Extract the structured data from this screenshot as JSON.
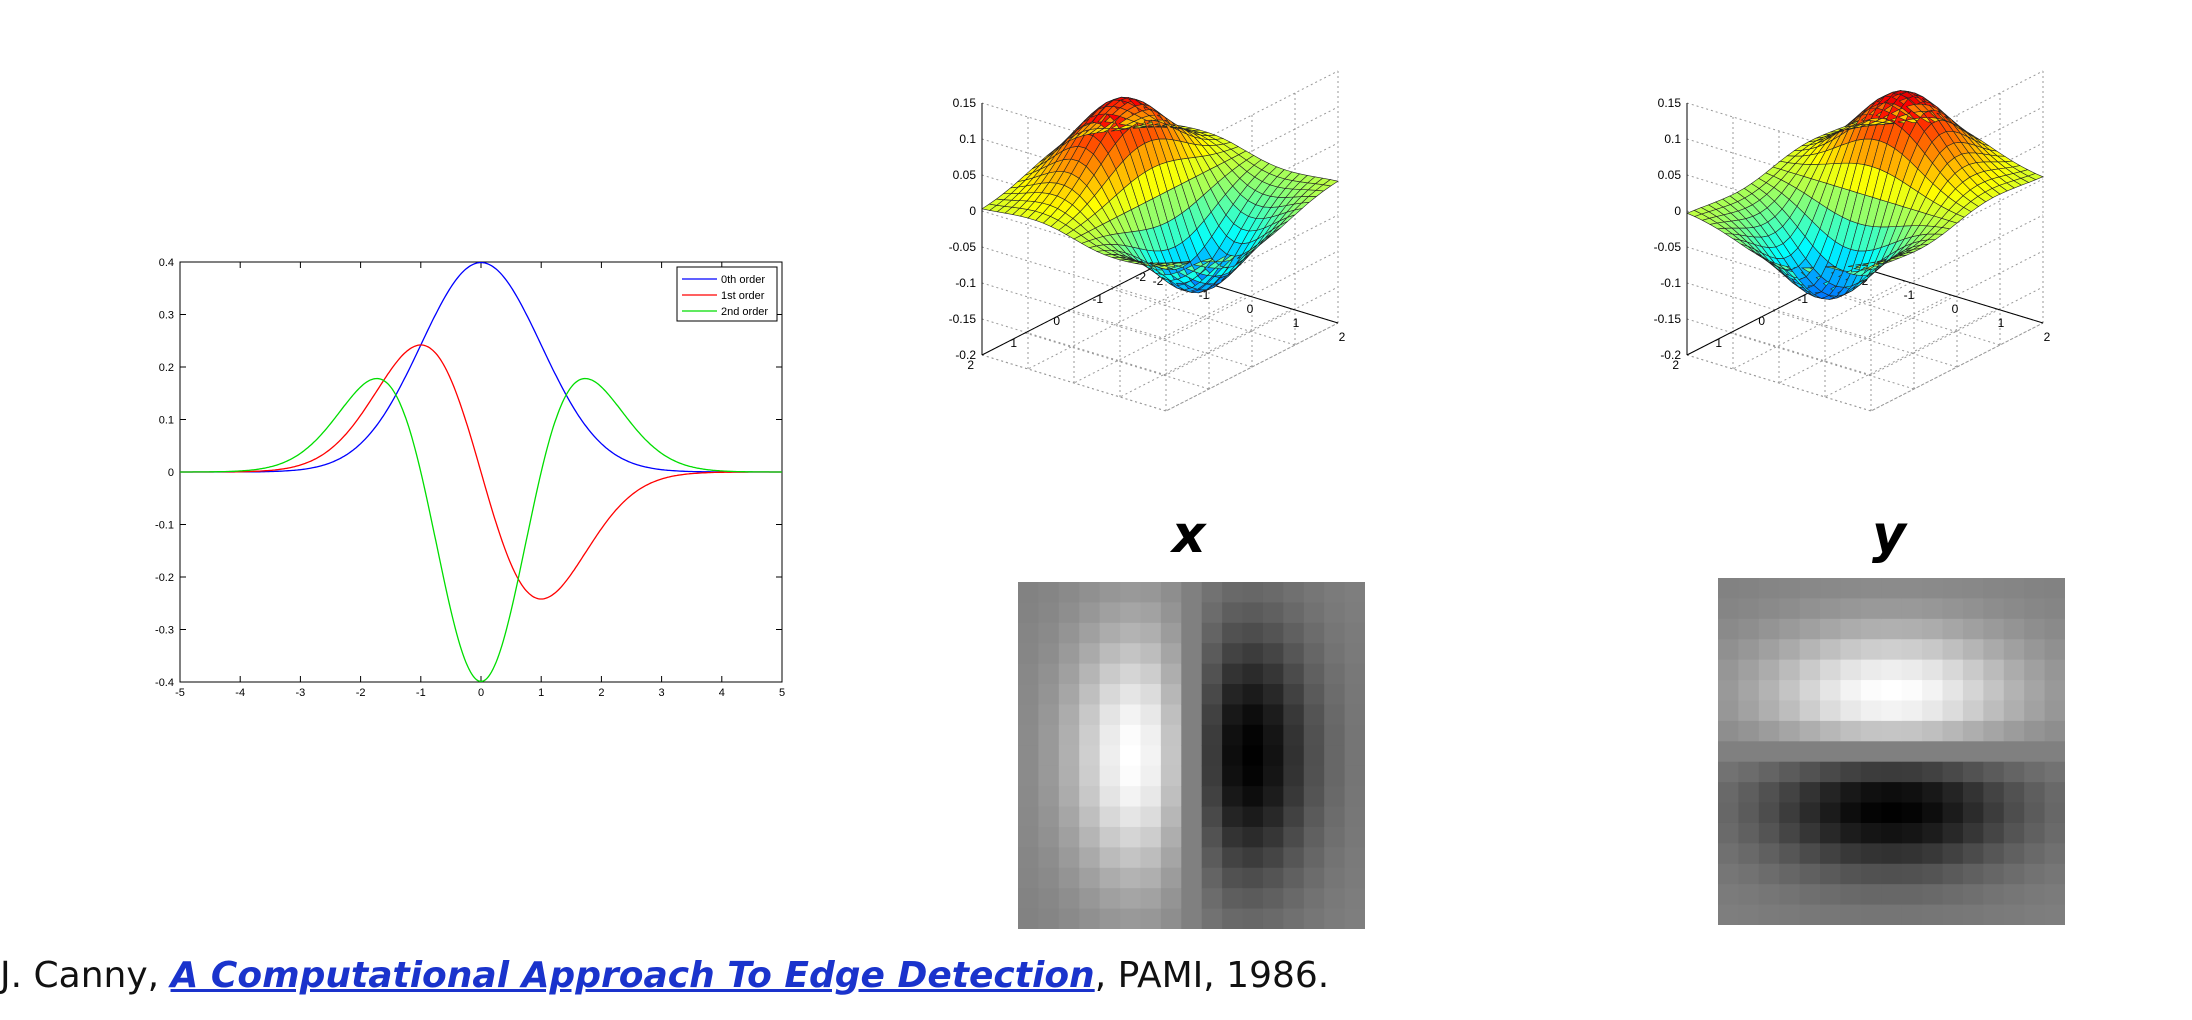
{
  "chart_data": [
    {
      "type": "line",
      "title": "",
      "xlabel": "",
      "ylabel": "",
      "xlim": [
        -5,
        5
      ],
      "ylim": [
        -0.4,
        0.4
      ],
      "x_ticks": [
        "-5",
        "-4",
        "-3",
        "-2",
        "-1",
        "0",
        "1",
        "2",
        "3",
        "4",
        "5"
      ],
      "y_ticks": [
        "0.4",
        "0.3",
        "0.2",
        "0.1",
        "0",
        "-0.1",
        "-0.2",
        "-0.3",
        "-0.4"
      ],
      "grid": false,
      "legend_position": "top-right",
      "series": [
        {
          "name": "0th order",
          "color": "#0000ff",
          "x": [
            -5,
            -4.5,
            -4,
            -3.5,
            -3,
            -2.5,
            -2,
            -1.5,
            -1,
            -0.5,
            0,
            0.5,
            1,
            1.5,
            2,
            2.5,
            3,
            3.5,
            4,
            4.5,
            5
          ],
          "values": [
            0.0,
            0.0,
            0.0001,
            0.0009,
            0.0044,
            0.0175,
            0.054,
            0.1295,
            0.242,
            0.352,
            0.399,
            0.352,
            0.242,
            0.1295,
            0.054,
            0.0175,
            0.0044,
            0.0009,
            0.0001,
            0.0,
            0.0
          ]
        },
        {
          "name": "1st order",
          "color": "#ff0000",
          "x": [
            -5,
            -4.5,
            -4,
            -3.5,
            -3,
            -2.5,
            -2,
            -1.5,
            -1,
            -0.5,
            0,
            0.5,
            1,
            1.5,
            2,
            2.5,
            3,
            3.5,
            4,
            4.5,
            5
          ],
          "values": [
            0.0,
            0.0,
            0.0005,
            0.003,
            0.0133,
            0.0438,
            0.108,
            0.194,
            0.242,
            0.176,
            0.0,
            -0.176,
            -0.242,
            -0.194,
            -0.108,
            -0.0438,
            -0.0133,
            -0.003,
            -0.0005,
            0.0,
            0.0
          ]
        },
        {
          "name": "2nd order",
          "color": "#00dd00",
          "x": [
            -5,
            -4.5,
            -4,
            -3.5,
            -3,
            -2.5,
            -2,
            -1.5,
            -1,
            -0.5,
            0,
            0.5,
            1,
            1.5,
            2,
            2.5,
            3,
            3.5,
            4,
            4.5,
            5
          ],
          "values": [
            0.0,
            0.0002,
            0.002,
            0.0102,
            0.0355,
            0.0918,
            0.162,
            0.162,
            0.0,
            -0.264,
            -0.399,
            -0.264,
            0.0,
            0.162,
            0.162,
            0.0918,
            0.0355,
            0.0102,
            0.002,
            0.0002,
            0.0
          ]
        }
      ]
    },
    {
      "type": "surface",
      "title": "",
      "z_ticks": [
        "0.15",
        "0.1",
        "0.05",
        "0",
        "-0.05",
        "-0.1",
        "-0.15",
        "-0.2"
      ],
      "y_ticks": [
        "2",
        "1",
        "0",
        "-1",
        "-2"
      ],
      "x_ticks": [
        "-2",
        "-1",
        "0",
        "1",
        "2"
      ],
      "zlim": [
        -0.2,
        0.15
      ],
      "colormap": "jet"
    },
    {
      "type": "surface",
      "title": "",
      "z_ticks": [
        "0.15",
        "0.1",
        "0.05",
        "0",
        "-0.05",
        "-0.1",
        "-0.15",
        "-0.2"
      ],
      "y_ticks": [
        "2",
        "1",
        "0",
        "-1",
        "-2"
      ],
      "x_ticks": [
        "-2",
        "-1",
        "0",
        "1",
        "2"
      ],
      "zlim": [
        -0.2,
        0.15
      ],
      "colormap": "jet"
    }
  ],
  "labels": {
    "x": "x",
    "y": "y"
  },
  "citation": {
    "prefix": "J. Canny, ",
    "link_text": "A Computational Approach To Edge Detection",
    "suffix": ", PAMI, 1986."
  }
}
